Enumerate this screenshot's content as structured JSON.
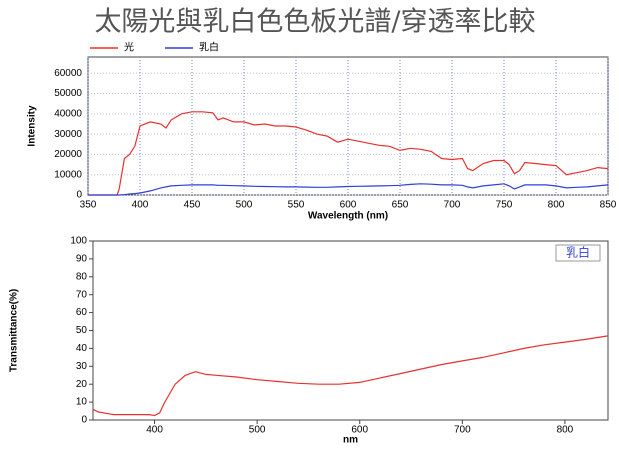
{
  "title": "太陽光與乳白色色板光譜/穿透率比較",
  "chart_data": [
    {
      "type": "line",
      "x_label": "Wavelength (nm)",
      "y_label": "Intensity",
      "x": [
        350,
        370,
        378,
        380,
        385,
        390,
        395,
        400,
        410,
        420,
        425,
        430,
        440,
        450,
        460,
        470,
        475,
        480,
        490,
        500,
        510,
        520,
        530,
        540,
        550,
        560,
        570,
        580,
        590,
        600,
        610,
        620,
        630,
        640,
        650,
        660,
        670,
        680,
        690,
        700,
        710,
        715,
        720,
        730,
        740,
        750,
        755,
        760,
        765,
        770,
        780,
        790,
        800,
        810,
        820,
        830,
        840,
        850
      ],
      "series": [
        {
          "name": "光",
          "color": "#e8312f",
          "values": [
            0,
            0,
            0,
            3000,
            18000,
            20000,
            24000,
            34000,
            36000,
            35000,
            33000,
            37000,
            40000,
            41000,
            41000,
            40500,
            37000,
            38000,
            36000,
            36000,
            34500,
            35000,
            34000,
            34000,
            33500,
            32000,
            30000,
            29000,
            26000,
            27500,
            26500,
            25500,
            24500,
            24000,
            22000,
            23000,
            22500,
            21500,
            18000,
            17500,
            18000,
            13000,
            12000,
            15500,
            17000,
            17000,
            15000,
            10500,
            12000,
            16000,
            15500,
            15000,
            14500,
            10000,
            11000,
            12000,
            13500,
            13000
          ]
        },
        {
          "name": "乳白",
          "color": "#2f3fd8",
          "values": [
            0,
            0,
            0,
            0,
            200,
            500,
            700,
            1000,
            2000,
            3500,
            4000,
            4500,
            4800,
            5000,
            5000,
            5000,
            4800,
            4800,
            4600,
            4500,
            4300,
            4200,
            4100,
            4000,
            4000,
            3900,
            3800,
            3800,
            4000,
            4200,
            4300,
            4400,
            4500,
            4600,
            4800,
            5200,
            5500,
            5300,
            5000,
            5000,
            4800,
            4000,
            3500,
            4500,
            5000,
            5500,
            4500,
            3000,
            4000,
            5000,
            5000,
            5000,
            4500,
            3500,
            3800,
            4000,
            4500,
            5000
          ]
        }
      ],
      "xlim": [
        350,
        850
      ],
      "xticks": [
        350,
        400,
        450,
        500,
        550,
        600,
        650,
        700,
        750,
        800,
        850
      ],
      "ylim": [
        0,
        68000
      ],
      "yticks": [
        0,
        10000,
        20000,
        30000,
        40000,
        50000,
        60000
      ],
      "grid": true,
      "legend": "top-left"
    },
    {
      "type": "line",
      "x_label": "nm",
      "y_label": "Transmittance(%)",
      "x": [
        340,
        345,
        355,
        360,
        380,
        395,
        400,
        405,
        410,
        420,
        430,
        440,
        450,
        460,
        480,
        500,
        520,
        540,
        560,
        580,
        600,
        620,
        640,
        660,
        680,
        700,
        720,
        740,
        760,
        780,
        800,
        820,
        842
      ],
      "series": [
        {
          "name": "乳白",
          "color": "#e8312f",
          "values": [
            6,
            4.5,
            3.5,
            3,
            3,
            3,
            2.5,
            4,
            10,
            20,
            25,
            27,
            25.5,
            25,
            24,
            22.5,
            21.5,
            20.5,
            20,
            20,
            21,
            23.5,
            26,
            28.5,
            31,
            33,
            35,
            37.5,
            40,
            42,
            43.5,
            45,
            47
          ]
        }
      ],
      "xlim": [
        340,
        842
      ],
      "xticks": [
        400,
        500,
        600,
        700,
        800
      ],
      "ylim": [
        0,
        100
      ],
      "yticks": [
        0,
        10,
        20,
        30,
        40,
        50,
        60,
        70,
        80,
        90,
        100
      ],
      "grid": false,
      "legend": "top-right"
    }
  ]
}
